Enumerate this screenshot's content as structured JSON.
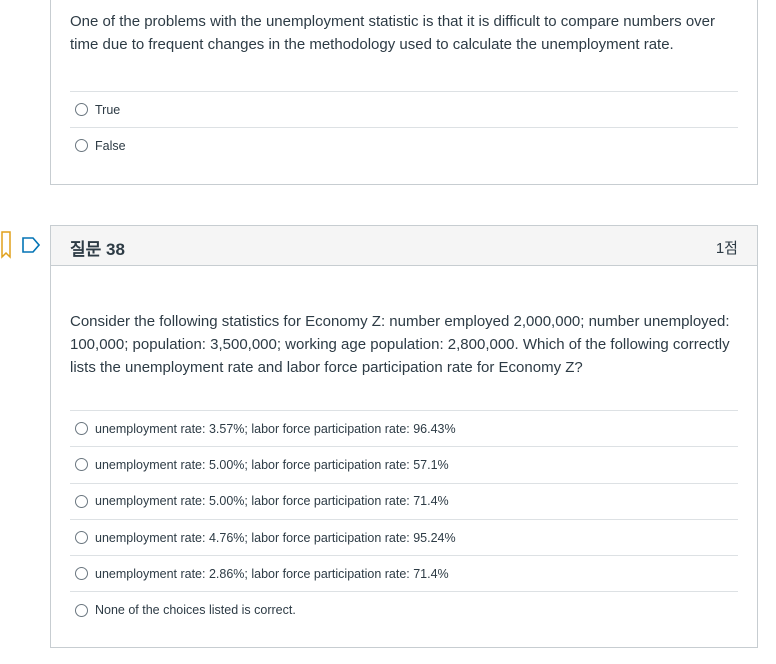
{
  "question_37": {
    "text": "One of the problems with the unemployment statistic is that it is difficult to compare numbers over time due to frequent changes in the methodology used to calculate the unemployment rate.",
    "answers": [
      "True",
      "False"
    ]
  },
  "question_38": {
    "title": "질문 38",
    "points": "1점",
    "text": "Consider the following statistics for Economy Z:  number employed 2,000,000; number unemployed: 100,000; population: 3,500,000; working age population: 2,800,000.  Which of the following correctly lists the unemployment rate and labor force participation rate for Economy Z?",
    "answers": [
      "unemployment rate: 3.57%; labor force participation rate: 96.43%",
      "unemployment rate: 5.00%; labor force participation rate: 57.1%",
      "unemployment rate: 5.00%; labor force participation rate: 71.4%",
      "unemployment rate: 4.76%; labor force participation rate: 95.24%",
      "unemployment rate: 2.86%; labor force participation rate: 71.4%",
      "None of the choices listed is correct."
    ]
  },
  "icons": {
    "bookmark": "bookmark-icon",
    "flag": "flag-question-icon",
    "radio": "radio-button-icon"
  },
  "colors": {
    "text": "#2d3b45",
    "border": "#c7cdd1",
    "header_bg": "#f5f5f5",
    "flag": "#0374b5"
  }
}
